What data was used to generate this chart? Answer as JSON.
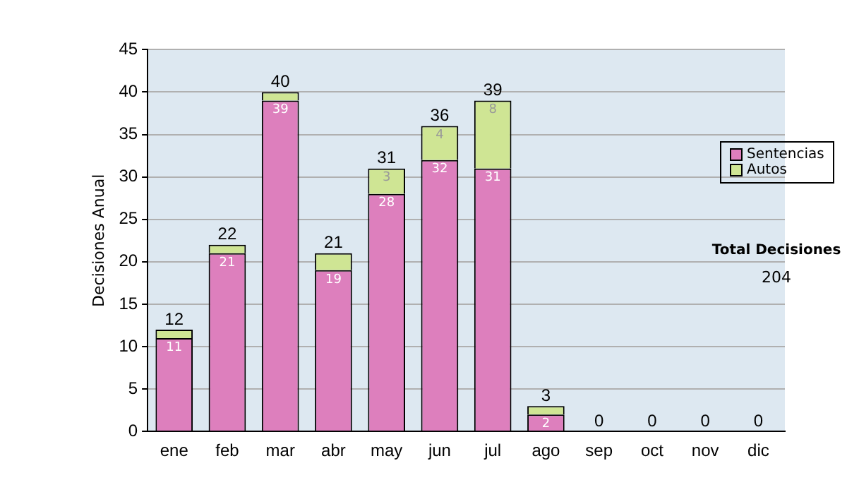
{
  "chart_data": {
    "type": "bar",
    "stacked": true,
    "ylabel": "Decisiones Anual",
    "categories": [
      "ene",
      "feb",
      "mar",
      "abr",
      "may",
      "jun",
      "jul",
      "ago",
      "sep",
      "oct",
      "nov",
      "dic"
    ],
    "series": [
      {
        "name": "Sentencias",
        "color": "#dd7fbd",
        "values": [
          11,
          21,
          39,
          19,
          28,
          32,
          31,
          2,
          0,
          0,
          0,
          0
        ],
        "value_labels": [
          "11",
          "21",
          "39",
          "19",
          "28",
          "32",
          "31",
          "2",
          null,
          null,
          null,
          null
        ]
      },
      {
        "name": "Autos",
        "color": "#cfe594",
        "values": [
          1,
          1,
          1,
          2,
          3,
          4,
          8,
          1,
          0,
          0,
          0,
          0
        ],
        "value_labels": [
          null,
          null,
          null,
          null,
          "3",
          "4",
          "8",
          null,
          null,
          null,
          null,
          null
        ]
      }
    ],
    "totals": [
      "12",
      "22",
      "40",
      "21",
      "31",
      "36",
      "39",
      "3",
      "0",
      "0",
      "0",
      "0"
    ],
    "ylim": [
      0,
      45
    ],
    "yticks": [
      0,
      5,
      10,
      15,
      20,
      25,
      30,
      35,
      40,
      45
    ],
    "grid": "y",
    "legend": "right",
    "annotations": [
      "Total Decisiones",
      "204"
    ]
  }
}
